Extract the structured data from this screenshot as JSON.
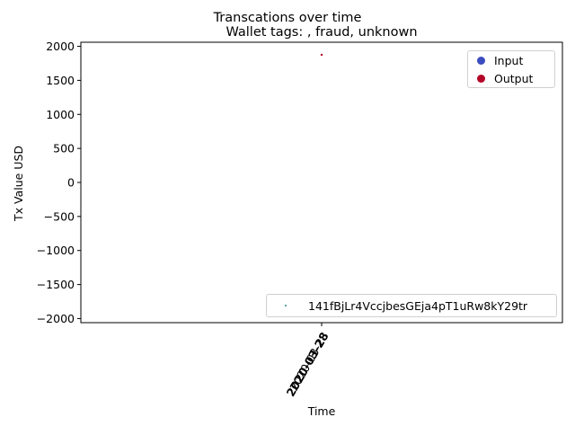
{
  "chart_data": {
    "type": "scatter",
    "suptitle": "Transcations over time",
    "title": "Wallet tags: , fraud, unknown",
    "xlabel": "Time",
    "ylabel": "Tx Value USD",
    "ylim": [
      -2060,
      2060
    ],
    "yticks": [
      2000,
      1500,
      1000,
      500,
      0,
      -500,
      -1000,
      -1500,
      -2000
    ],
    "ytick_labels": [
      "2000",
      "1500",
      "1000",
      "500",
      "0",
      "−500",
      "−1000",
      "−1500",
      "−2000"
    ],
    "xtick_labels": [
      "2020-03-28",
      "2020-03-28"
    ],
    "grid": false,
    "series": [
      {
        "name": "Output",
        "color": "#b40426",
        "points": [
          {
            "x": "2020-03-28",
            "y": 1875
          }
        ]
      },
      {
        "name": "141fBjLr4VccjbesGEja4pT1uRw8kY29tr",
        "color": "#2e8b8b",
        "points": []
      }
    ],
    "legend_upper": {
      "placement": "upper-right",
      "entries": [
        {
          "label": "Input",
          "color": "#3b4cc0"
        },
        {
          "label": "Output",
          "color": "#b40426"
        }
      ]
    },
    "legend_lower": {
      "placement": "lower-right",
      "entries": [
        {
          "label": "141fBjLr4VccjbesGEja4pT1uRw8kY29tr",
          "color": "#2e8b8b"
        }
      ]
    }
  }
}
